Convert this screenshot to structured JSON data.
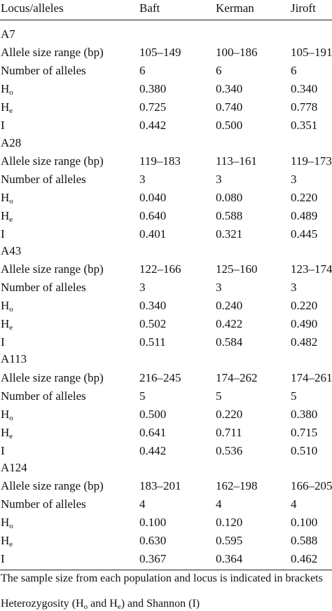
{
  "header": {
    "col0": "Locus/alleles",
    "col1": "Baft",
    "col2": "Kerman",
    "col3": "Jiroft"
  },
  "loci": [
    {
      "name": "A7",
      "size_label": "Allele size range (bp)",
      "size": [
        "105–149",
        "100–186",
        "105–191"
      ],
      "num_label": "Number of alleles",
      "num": [
        "6",
        "6",
        "6"
      ],
      "ho_label": "H",
      "ho_sub": "o",
      "ho": [
        "0.380",
        "0.340",
        "0.340"
      ],
      "he_label": "H",
      "he_sub": "e",
      "he": [
        "0.725",
        "0.740",
        "0.778"
      ],
      "i_label": "I",
      "i": [
        "0.442",
        "0.500",
        "0.351"
      ]
    },
    {
      "name": "A28",
      "size_label": "Allele size range (bp)",
      "size": [
        "119–183",
        "113–161",
        "119–173"
      ],
      "num_label": "Number of alleles",
      "num": [
        "3",
        "3",
        "3"
      ],
      "ho_label": "H",
      "ho_sub": "o",
      "ho": [
        "0.040",
        "0.080",
        "0.220"
      ],
      "he_label": "H",
      "he_sub": "e",
      "he": [
        "0.640",
        "0.588",
        "0.489"
      ],
      "i_label": "I",
      "i": [
        "0.401",
        "0.321",
        "0.445"
      ]
    },
    {
      "name": "A43",
      "size_label": "Allele size range (bp)",
      "size": [
        "122–166",
        "125–160",
        "123–174"
      ],
      "num_label": "Number of alleles",
      "num": [
        "3",
        "3",
        "3"
      ],
      "ho_label": "H",
      "ho_sub": "o",
      "ho": [
        "0.340",
        "0.240",
        "0.220"
      ],
      "he_label": "H",
      "he_sub": "e",
      "he": [
        "0.502",
        "0.422",
        "0.490"
      ],
      "i_label": "I",
      "i": [
        "0.511",
        "0.584",
        "0.482"
      ]
    },
    {
      "name": "A113",
      "size_label": "Allele size range (bp)",
      "size": [
        "216–245",
        "174–262",
        "174–261"
      ],
      "num_label": "Number of alleles",
      "num": [
        "5",
        "5",
        "5"
      ],
      "ho_label": "H",
      "ho_sub": "o",
      "ho": [
        "0.500",
        "0.220",
        "0.380"
      ],
      "he_label": "H",
      "he_sub": "e",
      "he": [
        "0.641",
        "0.711",
        "0.715"
      ],
      "i_label": "I",
      "i": [
        "0.442",
        "0.536",
        "0.510"
      ]
    },
    {
      "name": "A124",
      "size_label": "Allele size range (bp)",
      "size": [
        "183–201",
        "162–198",
        "166–205"
      ],
      "num_label": "Number of alleles",
      "num": [
        "4",
        "4",
        "4"
      ],
      "ho_label": "H",
      "ho_sub": "o",
      "ho": [
        "0.100",
        "0.120",
        "0.100"
      ],
      "he_label": "H",
      "he_sub": "e",
      "he": [
        "0.630",
        "0.595",
        "0.588"
      ],
      "i_label": "I",
      "i": [
        "0.367",
        "0.364",
        "0.462"
      ]
    }
  ],
  "footnotes": {
    "note1": "The sample size from each population and locus is indicated in brackets",
    "note2_a": "Heterozygosity (H",
    "note2_sub_o": "o",
    "note2_b": " and H",
    "note2_sub_e": "e",
    "note2_c": ") and Shannon (I)"
  }
}
